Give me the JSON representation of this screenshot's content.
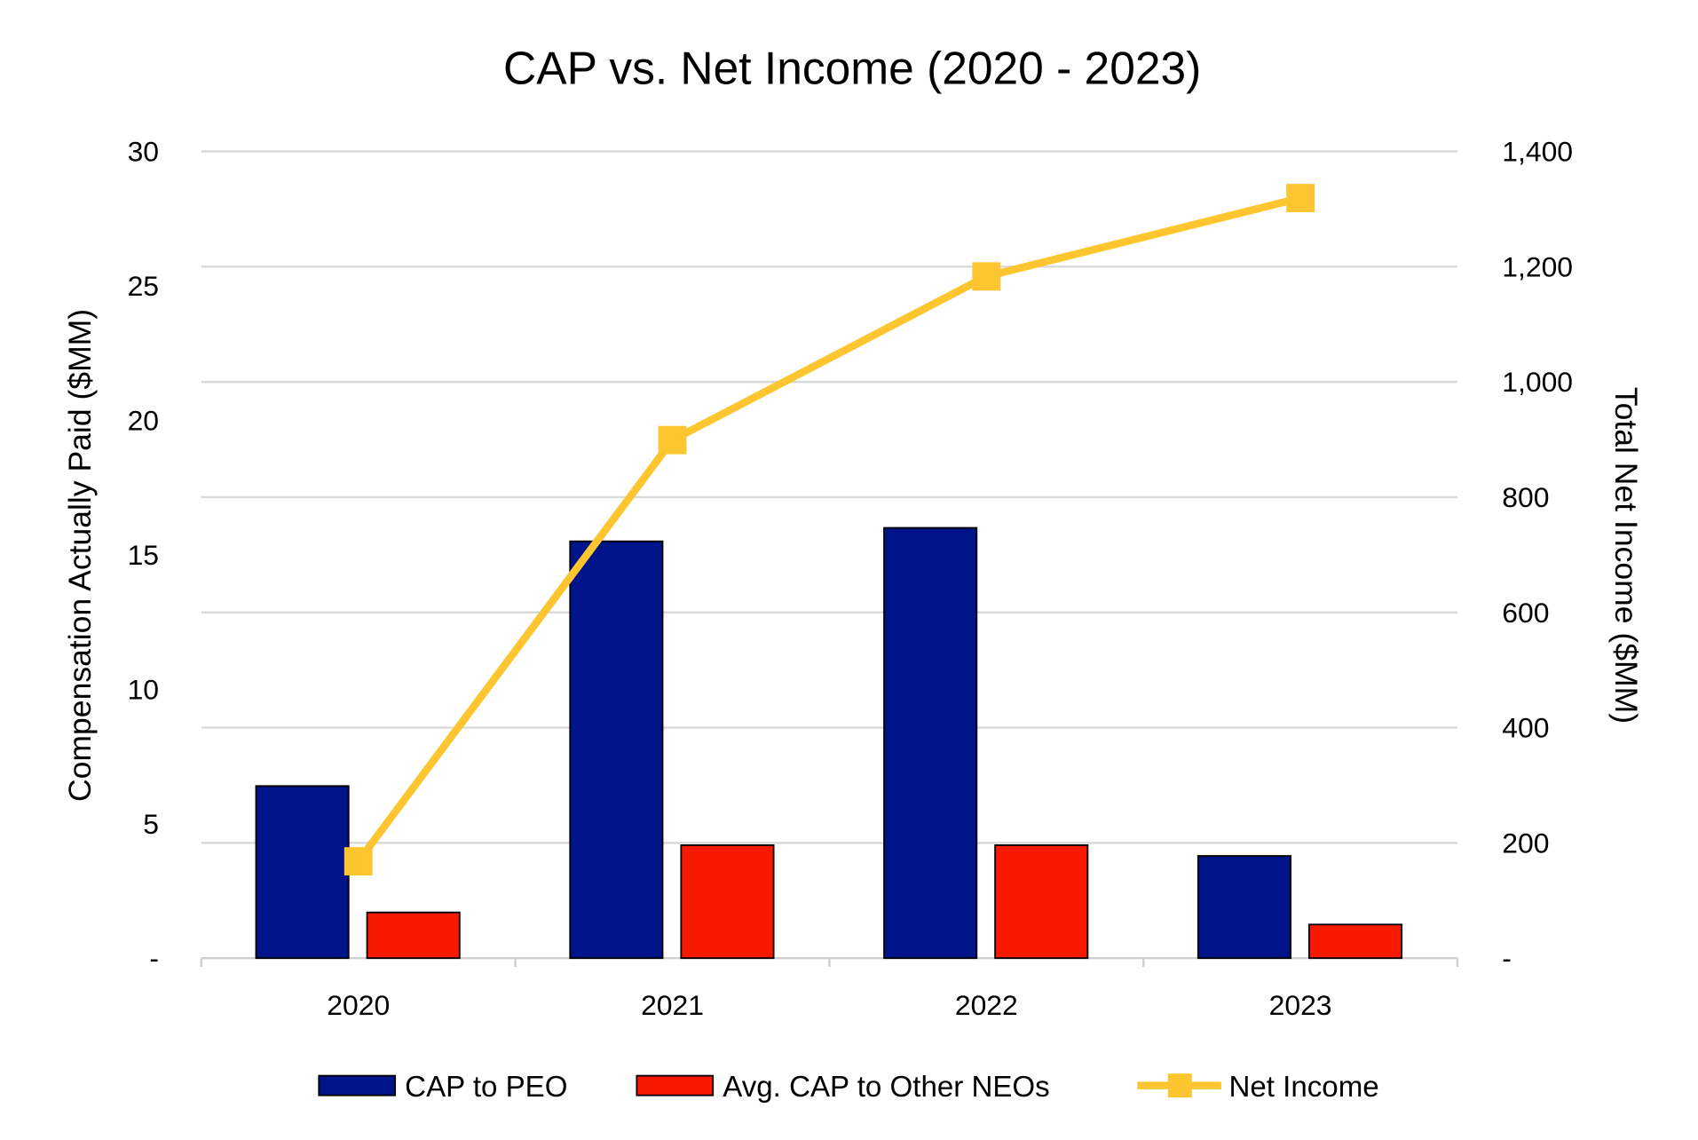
{
  "chart_data": {
    "type": "bar+line",
    "title": "CAP vs. Net Income (2020 - 2023)",
    "categories": [
      "2020",
      "2021",
      "2022",
      "2023"
    ],
    "y_left": {
      "label": "Compensation Actually Paid ($MM)",
      "lim": [
        0,
        30
      ],
      "ticks": [
        "-",
        "5",
        "10",
        "15",
        "20",
        "25",
        "30"
      ],
      "tick_values": [
        0,
        5,
        10,
        15,
        20,
        25,
        30
      ]
    },
    "y_right": {
      "label": "Total Net Income ($MM)",
      "lim": [
        0,
        1400
      ],
      "ticks": [
        "-",
        "200",
        "400",
        "600",
        "800",
        "1,000",
        "1,200",
        "1,400"
      ],
      "tick_values": [
        0,
        200,
        400,
        600,
        800,
        1000,
        1200,
        1400
      ]
    },
    "grid": true,
    "legend_position": "bottom",
    "series": [
      {
        "name": "CAP to PEO",
        "type": "bar",
        "axis": "left",
        "color": "#001489",
        "values": [
          6.4,
          15.5,
          16.0,
          3.8
        ]
      },
      {
        "name": "Avg. CAP to Other NEOs",
        "type": "bar",
        "axis": "left",
        "color": "#F71A00",
        "values": [
          1.7,
          4.2,
          4.2,
          1.25
        ]
      },
      {
        "name": "Net Income",
        "type": "line",
        "axis": "right",
        "color": "#FDC52F",
        "marker": "square",
        "values": [
          168,
          899,
          1183,
          1319
        ]
      }
    ]
  }
}
